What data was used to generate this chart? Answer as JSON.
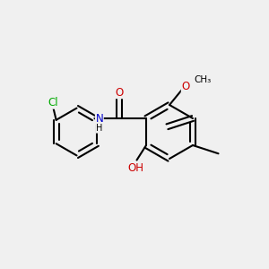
{
  "bg_color": "#f0f0f0",
  "bond_color": "#000000",
  "bond_width": 1.5,
  "atom_colors": {
    "C": "#000000",
    "O": "#cc0000",
    "N": "#0000cc",
    "Cl": "#00aa00",
    "H": "#000000"
  },
  "font_size": 8.5,
  "figsize": [
    3.0,
    3.0
  ],
  "dpi": 100
}
